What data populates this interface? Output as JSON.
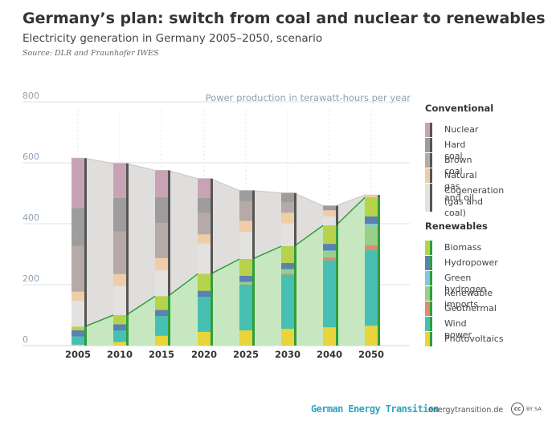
{
  "header": {
    "title": "Germany’s plan: switch from coal and nuclear to renewables",
    "subtitle": "Electricity generation in Germany 2005–2050, scenario",
    "source": "Source: DLR and Fraunhofer IWES"
  },
  "footer": {
    "brand": "German Energy Transition",
    "site": "energytransition.de",
    "cc": "cc",
    "license": "BY SA"
  },
  "chart_data": {
    "type": "bar",
    "stacked": true,
    "unit_label": "Power production in terawatt-hours per year",
    "categories": [
      "2005",
      "2010",
      "2015",
      "2020",
      "2025",
      "2030",
      "2040",
      "2050"
    ],
    "ylim": [
      0,
      800
    ],
    "yticks": [
      0,
      200,
      400,
      600,
      800
    ],
    "grid": true,
    "legend_position": "right",
    "colors": {
      "Photovoltaics": "#e8d53c",
      "Wind power": "#47bfb3",
      "Geothermal": "#e08a6e",
      "Renewable imports": "#99cf88",
      "Green hydrogen": "#82c6e0",
      "Hydropower": "#5b80b3",
      "Biomass": "#b7d34b",
      "Cogeneration (gas and coal)": "#e4e2e0",
      "Natural gas and oil": "#efcda8",
      "Brown coal": "#b5aaa7",
      "Hard coal": "#9e9c9c",
      "Nuclear": "#c8a3b5"
    },
    "legend": {
      "conventional": {
        "title": "Conventional",
        "items": [
          "Nuclear",
          "Hard coal",
          "Brown coal",
          "Natural gas and oil",
          "Cogeneration (gas and coal)"
        ]
      },
      "renewables": {
        "title": "Renewables",
        "items": [
          "Biomass",
          "Hydropower",
          "Green hydrogen",
          "Renewable imports",
          "Geothermal",
          "Wind power",
          "Photovoltaics"
        ]
      }
    },
    "renewables_series": [
      {
        "name": "Photovoltaics",
        "values": [
          3,
          12,
          32,
          45,
          50,
          55,
          60,
          65
        ]
      },
      {
        "name": "Wind power",
        "values": [
          27,
          38,
          65,
          115,
          150,
          178,
          220,
          250
        ]
      },
      {
        "name": "Geothermal",
        "values": [
          0,
          0,
          0,
          0,
          1,
          3,
          10,
          15
        ]
      },
      {
        "name": "Renewable imports",
        "values": [
          0,
          0,
          0,
          0,
          8,
          15,
          20,
          65
        ]
      },
      {
        "name": "Green hydrogen",
        "values": [
          0,
          0,
          0,
          0,
          0,
          0,
          2,
          5
        ]
      },
      {
        "name": "Hydropower",
        "values": [
          20,
          20,
          20,
          20,
          20,
          20,
          22,
          24
        ]
      },
      {
        "name": "Biomass",
        "values": [
          12,
          30,
          45,
          55,
          55,
          55,
          60,
          62
        ]
      }
    ],
    "conventional_series": [
      {
        "name": "Cogeneration (gas and coal)",
        "values": [
          85,
          95,
          85,
          100,
          90,
          75,
          30,
          0
        ]
      },
      {
        "name": "Natural gas and oil",
        "values": [
          30,
          40,
          40,
          30,
          35,
          35,
          20,
          8
        ]
      },
      {
        "name": "Brown coal",
        "values": [
          150,
          140,
          115,
          70,
          65,
          35,
          0,
          0
        ]
      },
      {
        "name": "Hard coal",
        "values": [
          125,
          110,
          85,
          50,
          35,
          30,
          15,
          0
        ]
      },
      {
        "name": "Nuclear",
        "values": [
          163,
          113,
          88,
          63,
          0,
          0,
          0,
          0
        ]
      }
    ]
  }
}
